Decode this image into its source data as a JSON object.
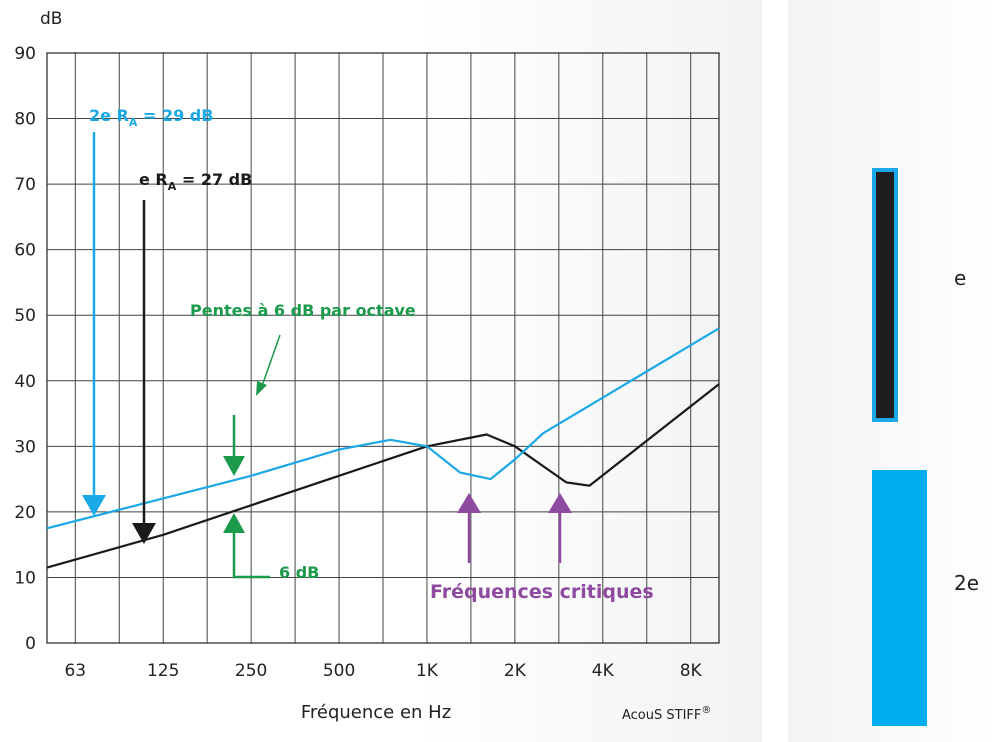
{
  "chart_data": {
    "type": "line",
    "ylabel": "dB",
    "xlabel": "Fréquence en Hz",
    "ylim": [
      0,
      90
    ],
    "y_ticks": [
      "0",
      "10",
      "20",
      "30",
      "40",
      "50",
      "60",
      "70",
      "80",
      "90"
    ],
    "x_tick_labels": [
      "63",
      "125",
      "250",
      "500",
      "1K",
      "2K",
      "4K",
      "8K"
    ],
    "grid": true,
    "series": [
      {
        "name": "e",
        "color": "#1a1a1a",
        "points": [
          [
            50,
            11.5
          ],
          [
            125,
            16.5
          ],
          [
            250,
            21
          ],
          [
            500,
            25.5
          ],
          [
            1000,
            30
          ],
          [
            1600,
            31.8
          ],
          [
            2000,
            30
          ],
          [
            3000,
            24.5
          ],
          [
            3600,
            24
          ],
          [
            10000,
            39.5
          ]
        ]
      },
      {
        "name": "2e",
        "color": "#1aa9e6",
        "points": [
          [
            50,
            17.5
          ],
          [
            250,
            25.5
          ],
          [
            500,
            29.5
          ],
          [
            750,
            31
          ],
          [
            1000,
            30
          ],
          [
            1300,
            26
          ],
          [
            1650,
            25
          ],
          [
            2000,
            28
          ],
          [
            2500,
            32
          ],
          [
            10000,
            48
          ]
        ]
      }
    ],
    "annotations": {
      "ra_2e": {
        "prefix": "2e R",
        "sub": "A",
        "suffix": " = 29 dB",
        "color": "#1aa9e6"
      },
      "ra_e": {
        "prefix": "e R",
        "sub": "A",
        "suffix": " = 27 dB",
        "color": "#1a1a1a"
      },
      "slopes": {
        "text": "Pentes à 6 dB par octave",
        "color": "#1a9a4a"
      },
      "step": {
        "text": "6 dB",
        "color": "#1a9a4a"
      },
      "critical": {
        "text": "Fréquences critiques",
        "color": "#8e4a9e"
      }
    }
  },
  "brand": {
    "text": "AcouS STIFF",
    "mark": "®"
  },
  "legend": {
    "items": [
      {
        "label": "e",
        "fill": "#1e1e1e",
        "border": "#1aa9e6"
      },
      {
        "label": "2e",
        "fill": "#00aeef"
      }
    ]
  }
}
